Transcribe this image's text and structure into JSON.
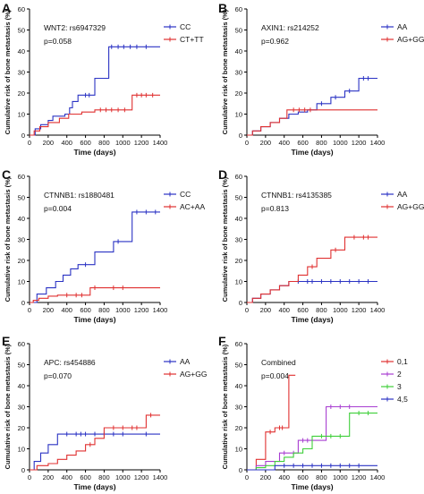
{
  "chart_data": [
    {
      "type": "line",
      "step": true,
      "panel_letter": "A",
      "annotation_title": "WNT2: rs6947329",
      "annotation_p": "p=0.058",
      "xlabel": "Time (days)",
      "ylabel": "Cumulative risk of bone metastasis (%)",
      "xlim": [
        0,
        1400
      ],
      "ylim": [
        0,
        60
      ],
      "xticks": [
        0,
        200,
        400,
        600,
        800,
        1000,
        1200,
        1400
      ],
      "yticks": [
        0,
        10,
        20,
        30,
        40,
        50,
        60
      ],
      "grid": false,
      "legend": "top-right",
      "series": [
        {
          "name": "CC",
          "color": "#2b33c4",
          "x": [
            0,
            60,
            120,
            200,
            250,
            380,
            430,
            460,
            520,
            700,
            850,
            1400
          ],
          "y": [
            0,
            3,
            5,
            7,
            9,
            10,
            13,
            16,
            19,
            27,
            42,
            42
          ],
          "censor_x": [
            600,
            640,
            880,
            950,
            1010,
            1080,
            1150,
            1250
          ]
        },
        {
          "name": "CT+TT",
          "color": "#e03131",
          "x": [
            0,
            50,
            110,
            200,
            320,
            420,
            560,
            700,
            1100,
            1400
          ],
          "y": [
            0,
            2,
            4,
            6,
            8,
            10,
            11,
            12,
            19,
            19
          ],
          "censor_x": [
            760,
            820,
            880,
            950,
            1020,
            1150,
            1200,
            1250,
            1320
          ]
        }
      ]
    },
    {
      "type": "line",
      "step": true,
      "panel_letter": "B",
      "annotation_title": "AXIN1: rs214252",
      "annotation_p": "p=0.962",
      "xlabel": "Time (days)",
      "ylabel": "Cumulative risk of bone metastasis (%)",
      "xlim": [
        0,
        1400
      ],
      "ylim": [
        0,
        60
      ],
      "xticks": [
        0,
        200,
        400,
        600,
        800,
        1000,
        1200,
        1400
      ],
      "yticks": [
        0,
        10,
        20,
        30,
        40,
        50,
        60
      ],
      "grid": false,
      "legend": "top-right",
      "series": [
        {
          "name": "AA",
          "color": "#2b33c4",
          "x": [
            0,
            60,
            150,
            250,
            350,
            450,
            550,
            650,
            750,
            900,
            1050,
            1200,
            1400
          ],
          "y": [
            0,
            2,
            4,
            6,
            8,
            10,
            11,
            12,
            15,
            18,
            21,
            27,
            27
          ],
          "censor_x": [
            800,
            950,
            1100,
            1250,
            1300
          ]
        },
        {
          "name": "AG+GG",
          "color": "#e03131",
          "x": [
            0,
            60,
            150,
            250,
            350,
            430,
            1400
          ],
          "y": [
            0,
            2,
            4,
            6,
            8,
            12,
            12
          ],
          "censor_x": [
            500,
            560,
            620,
            680
          ]
        }
      ]
    },
    {
      "type": "line",
      "step": true,
      "panel_letter": "C",
      "annotation_title": "CTNNB1: rs1880481",
      "annotation_p": "p=0.004",
      "xlabel": "Time (days)",
      "ylabel": "Cumulative risk of bone metastasis (%)",
      "xlim": [
        0,
        1400
      ],
      "ylim": [
        0,
        60
      ],
      "xticks": [
        0,
        200,
        400,
        600,
        800,
        1000,
        1200,
        1400
      ],
      "yticks": [
        0,
        10,
        20,
        30,
        40,
        50,
        60
      ],
      "grid": false,
      "legend": "top-right",
      "series": [
        {
          "name": "CC",
          "color": "#2b33c4",
          "x": [
            0,
            80,
            180,
            280,
            360,
            440,
            520,
            700,
            900,
            1100,
            1400
          ],
          "y": [
            0,
            4,
            7,
            10,
            13,
            16,
            18,
            24,
            29,
            43,
            43
          ],
          "censor_x": [
            600,
            950,
            1150,
            1250,
            1350
          ]
        },
        {
          "name": "AC+AA",
          "color": "#e03131",
          "x": [
            0,
            40,
            100,
            200,
            300,
            650,
            1400
          ],
          "y": [
            0,
            1,
            2,
            3,
            3.5,
            7,
            7
          ],
          "censor_x": [
            400,
            500,
            560,
            700,
            900,
            1000
          ]
        }
      ]
    },
    {
      "type": "line",
      "step": true,
      "panel_letter": "D",
      "annotation_title": "CTNNB1: rs4135385",
      "annotation_p": "p=0.813",
      "xlabel": "Time (days)",
      "ylabel": "Cumulative risk of bone metastasis (%)",
      "xlim": [
        0,
        1400
      ],
      "ylim": [
        0,
        60
      ],
      "xticks": [
        0,
        200,
        400,
        600,
        800,
        1000,
        1200,
        1400
      ],
      "yticks": [
        0,
        10,
        20,
        30,
        40,
        50,
        60
      ],
      "grid": false,
      "legend": "top-right",
      "series": [
        {
          "name": "AA",
          "color": "#2b33c4",
          "x": [
            0,
            60,
            150,
            250,
            350,
            450,
            1400
          ],
          "y": [
            0,
            2,
            4,
            6,
            8,
            10,
            10
          ],
          "censor_x": [
            550,
            650,
            700,
            800,
            900,
            1000,
            1100,
            1200,
            1300
          ]
        },
        {
          "name": "AG+GG",
          "color": "#e03131",
          "x": [
            0,
            60,
            150,
            250,
            350,
            450,
            550,
            650,
            750,
            900,
            1050,
            1400
          ],
          "y": [
            0,
            2,
            4,
            6,
            8,
            10,
            13,
            17,
            21,
            25,
            31,
            31
          ],
          "censor_x": [
            700,
            950,
            1150,
            1250,
            1300
          ]
        }
      ]
    },
    {
      "type": "line",
      "step": true,
      "panel_letter": "E",
      "annotation_title": "APC: rs454886",
      "annotation_p": "p=0.070",
      "xlabel": "Time (days)",
      "ylabel": "Cumulative risk of bone metastasis (%)",
      "xlim": [
        0,
        1400
      ],
      "ylim": [
        0,
        60
      ],
      "xticks": [
        0,
        200,
        400,
        600,
        800,
        1000,
        1200,
        1400
      ],
      "yticks": [
        0,
        10,
        20,
        30,
        40,
        50,
        60
      ],
      "grid": false,
      "legend": "top-right",
      "series": [
        {
          "name": "AA",
          "color": "#2b33c4",
          "x": [
            0,
            50,
            120,
            200,
            300,
            1400
          ],
          "y": [
            0,
            4,
            8,
            12,
            17,
            17
          ],
          "censor_x": [
            400,
            500,
            550,
            600,
            700,
            800,
            900,
            1000,
            1250
          ]
        },
        {
          "name": "AG+GG",
          "color": "#e03131",
          "x": [
            0,
            80,
            200,
            300,
            400,
            500,
            600,
            700,
            800,
            1250,
            1400
          ],
          "y": [
            0,
            2,
            3,
            5,
            7,
            9,
            12,
            15,
            20,
            26,
            26
          ],
          "censor_x": [
            650,
            900,
            1000,
            1100,
            1150,
            1300
          ]
        }
      ]
    },
    {
      "type": "line",
      "step": true,
      "panel_letter": "F",
      "annotation_title": "Combined",
      "annotation_p": "p=0.004",
      "xlabel": "Time (days)",
      "ylabel": "Cumulative risk of bone metastasis (%)",
      "xlim": [
        0,
        1400
      ],
      "ylim": [
        0,
        60
      ],
      "xticks": [
        0,
        200,
        400,
        600,
        800,
        1000,
        1200,
        1400
      ],
      "yticks": [
        0,
        10,
        20,
        30,
        40,
        50,
        60
      ],
      "grid": false,
      "legend": "top-right",
      "series": [
        {
          "name": "0,1",
          "color": "#e03131",
          "x": [
            0,
            100,
            200,
            300,
            450,
            520
          ],
          "y": [
            0,
            5,
            18,
            20,
            45,
            45
          ],
          "censor_x": [
            250,
            350,
            380
          ]
        },
        {
          "name": "2",
          "color": "#a83ed1",
          "x": [
            0,
            100,
            200,
            350,
            550,
            850,
            1400
          ],
          "y": [
            0,
            2,
            4,
            8,
            14,
            30,
            30
          ],
          "censor_x": [
            400,
            500,
            600,
            650,
            700,
            900,
            1000,
            1100
          ]
        },
        {
          "name": "3",
          "color": "#3fcf3a",
          "x": [
            0,
            100,
            200,
            300,
            400,
            500,
            600,
            700,
            1100,
            1400
          ],
          "y": [
            0,
            1,
            2,
            4,
            6,
            8,
            10,
            16,
            27,
            27
          ],
          "censor_x": [
            800,
            900,
            1000,
            1200,
            1300
          ]
        },
        {
          "name": "4,5",
          "color": "#2b33c4",
          "x": [
            0,
            300,
            1400
          ],
          "y": [
            0,
            2,
            2
          ],
          "censor_x": [
            400,
            500,
            600,
            700,
            800,
            900,
            1000,
            1100,
            1200
          ]
        }
      ]
    }
  ]
}
